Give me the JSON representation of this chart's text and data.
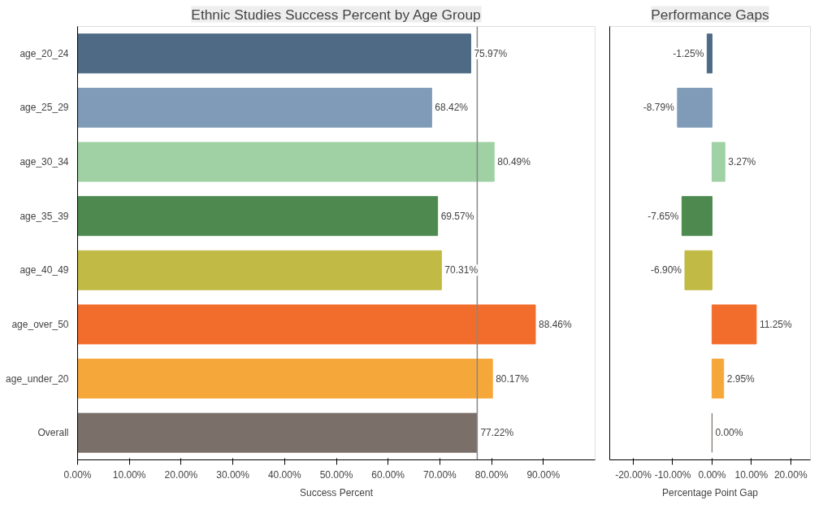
{
  "chart_data": [
    {
      "type": "bar",
      "orientation": "horizontal",
      "title": "Ethnic Studies Success Percent by Age Group",
      "xlabel": "Success Percent",
      "categories": [
        "age_20_24",
        "age_25_29",
        "age_30_34",
        "age_35_39",
        "age_40_49",
        "age_over_50",
        "age_under_20",
        "Overall"
      ],
      "values": [
        75.97,
        68.42,
        80.49,
        69.57,
        70.31,
        88.46,
        80.17,
        77.22
      ],
      "value_labels": [
        "75.97%",
        "68.42%",
        "80.49%",
        "69.57%",
        "70.31%",
        "88.46%",
        "80.17%",
        "77.22%"
      ],
      "colors": [
        "#4e6a85",
        "#7f9bb8",
        "#9fd1a4",
        "#4e8a50",
        "#c1ba45",
        "#f26d2c",
        "#f6a73a",
        "#7a7069"
      ],
      "xlim": [
        0,
        100
      ],
      "xticks": [
        {
          "value": 0,
          "label": "0.00%"
        },
        {
          "value": 10,
          "label": "10.00%"
        },
        {
          "value": 20,
          "label": "20.00%"
        },
        {
          "value": 30,
          "label": "30.00%"
        },
        {
          "value": 40,
          "label": "40.00%"
        },
        {
          "value": 50,
          "label": "50.00%"
        },
        {
          "value": 60,
          "label": "60.00%"
        },
        {
          "value": 70,
          "label": "70.00%"
        },
        {
          "value": 80,
          "label": "80.00%"
        },
        {
          "value": 90,
          "label": "90.00%"
        }
      ],
      "ref_lines": [
        {
          "axis": "x",
          "value": 77.22,
          "color": "#888888"
        }
      ]
    },
    {
      "type": "bar",
      "orientation": "horizontal",
      "title": "Performance Gaps",
      "xlabel": "Percentage Point Gap",
      "categories": [
        null,
        null,
        null,
        null,
        null,
        null,
        null,
        null
      ],
      "values": [
        -1.25,
        -8.79,
        3.27,
        -7.65,
        -6.9,
        11.25,
        2.95,
        0.0
      ],
      "value_labels": [
        "-1.25%",
        "-8.79%",
        "3.27%",
        "-7.65%",
        "-6.90%",
        "11.25%",
        "2.95%",
        "0.00%"
      ],
      "colors": [
        "#4e6a85",
        "#7f9bb8",
        "#9fd1a4",
        "#4e8a50",
        "#c1ba45",
        "#f26d2c",
        "#f6a73a",
        "#7a7069"
      ],
      "xlim": [
        -26,
        25
      ],
      "xticks": [
        {
          "value": -20,
          "label": "-20.00%"
        },
        {
          "value": -10,
          "label": "-10.00%"
        },
        {
          "value": 0,
          "label": "0.00%"
        },
        {
          "value": 10,
          "label": "10.00%"
        },
        {
          "value": 20,
          "label": "20.00%"
        }
      ]
    }
  ]
}
